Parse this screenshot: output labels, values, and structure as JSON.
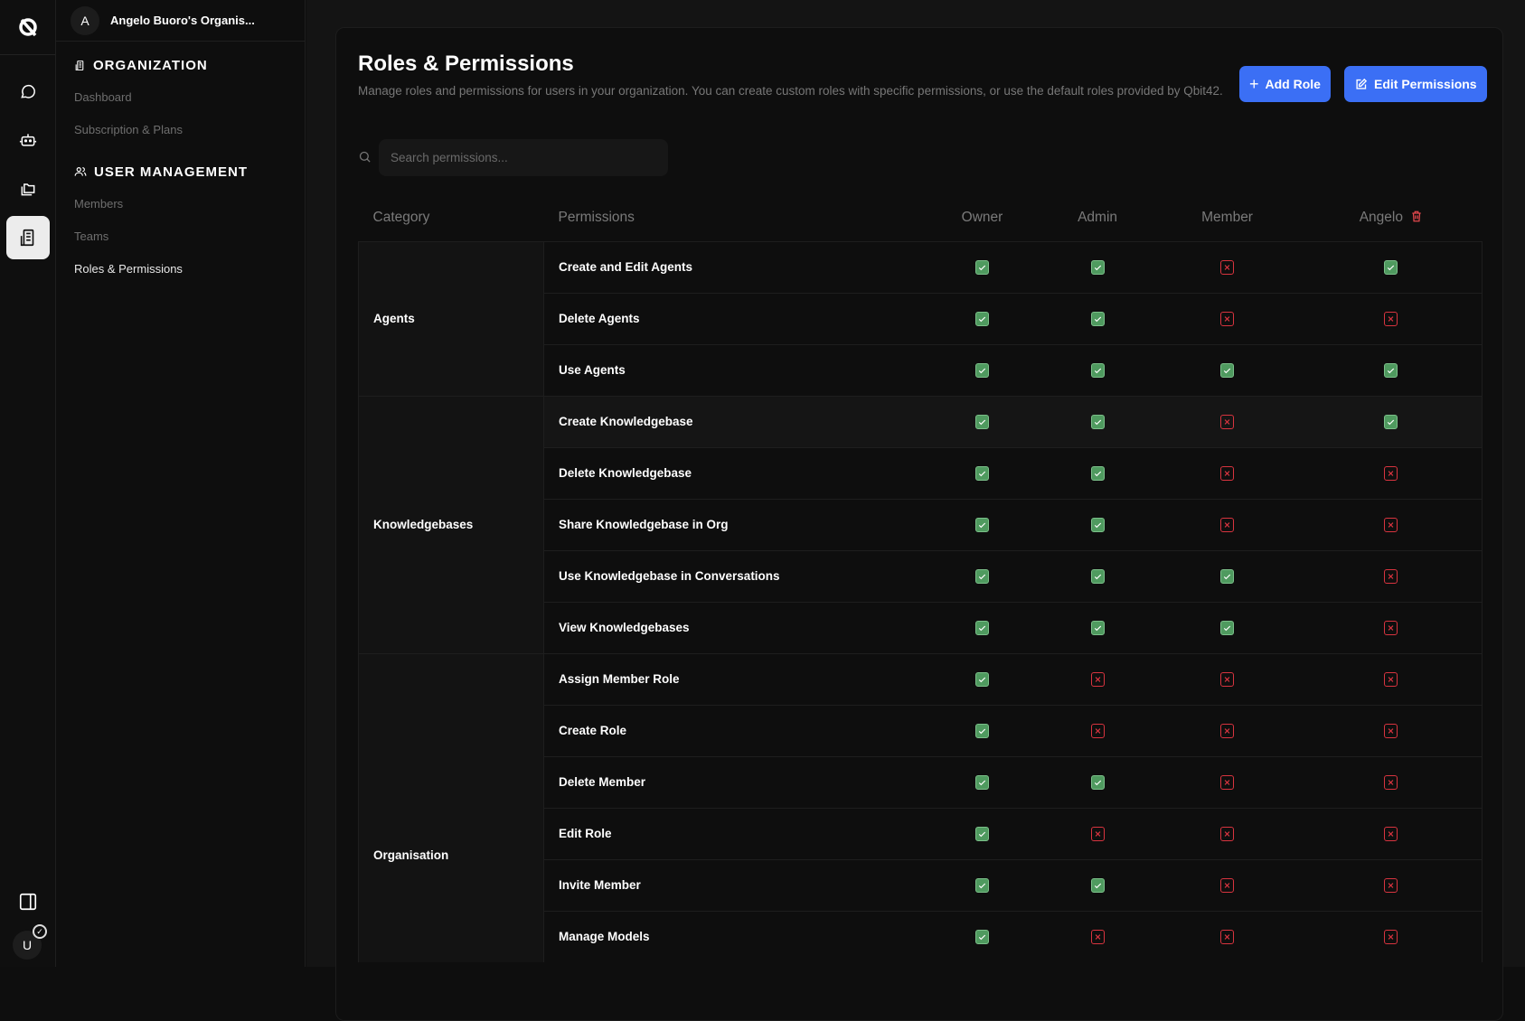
{
  "org": {
    "avatar": "A",
    "name": "Angelo Buoro's Organis..."
  },
  "user": {
    "avatar": "U"
  },
  "sidebar": {
    "sections": [
      {
        "title": "ORGANIZATION",
        "icon": "building-icon",
        "items": [
          {
            "label": "Dashboard"
          },
          {
            "label": "Subscription & Plans"
          }
        ]
      },
      {
        "title": "USER MANAGEMENT",
        "icon": "users-icon",
        "items": [
          {
            "label": "Members"
          },
          {
            "label": "Teams"
          },
          {
            "label": "Roles & Permissions",
            "active": true
          }
        ]
      }
    ]
  },
  "page": {
    "title": "Roles & Permissions",
    "description": "Manage roles and permissions for users in your organization. You can create custom roles with specific permissions, or use the default roles provided by Qbit42.",
    "add_role": "Add Role",
    "edit_permissions": "Edit Permissions",
    "search_placeholder": "Search permissions..."
  },
  "colors": {
    "accent": "#3b6ff5",
    "granted": "#4f9a5f",
    "denied": "#d8343f"
  },
  "table": {
    "headers": {
      "category": "Category",
      "permissions": "Permissions",
      "roles": [
        "Owner",
        "Admin",
        "Member",
        "Angelo"
      ]
    },
    "groups": [
      {
        "category": "Agents",
        "rows": [
          {
            "permission": "Create and Edit Agents",
            "values": [
              true,
              true,
              false,
              true
            ]
          },
          {
            "permission": "Delete Agents",
            "values": [
              true,
              true,
              false,
              false
            ]
          },
          {
            "permission": "Use Agents",
            "values": [
              true,
              true,
              true,
              true
            ]
          }
        ]
      },
      {
        "category": "Knowledgebases",
        "rows": [
          {
            "permission": "Create Knowledgebase",
            "values": [
              true,
              true,
              false,
              true
            ]
          },
          {
            "permission": "Delete Knowledgebase",
            "values": [
              true,
              true,
              false,
              false
            ]
          },
          {
            "permission": "Share Knowledgebase in Org",
            "values": [
              true,
              true,
              false,
              false
            ]
          },
          {
            "permission": "Use Knowledgebase in Conversations",
            "values": [
              true,
              true,
              true,
              false
            ]
          },
          {
            "permission": "View Knowledgebases",
            "values": [
              true,
              true,
              true,
              false
            ]
          }
        ]
      },
      {
        "category": "Organisation",
        "rows": [
          {
            "permission": "Assign Member Role",
            "values": [
              true,
              false,
              false,
              false
            ]
          },
          {
            "permission": "Create Role",
            "values": [
              true,
              false,
              false,
              false
            ]
          },
          {
            "permission": "Delete Member",
            "values": [
              true,
              true,
              false,
              false
            ]
          },
          {
            "permission": "Edit Role",
            "values": [
              true,
              false,
              false,
              false
            ]
          },
          {
            "permission": "Invite Member",
            "values": [
              true,
              true,
              false,
              false
            ]
          },
          {
            "permission": "Manage Models",
            "values": [
              true,
              false,
              false,
              false
            ]
          }
        ]
      }
    ]
  }
}
